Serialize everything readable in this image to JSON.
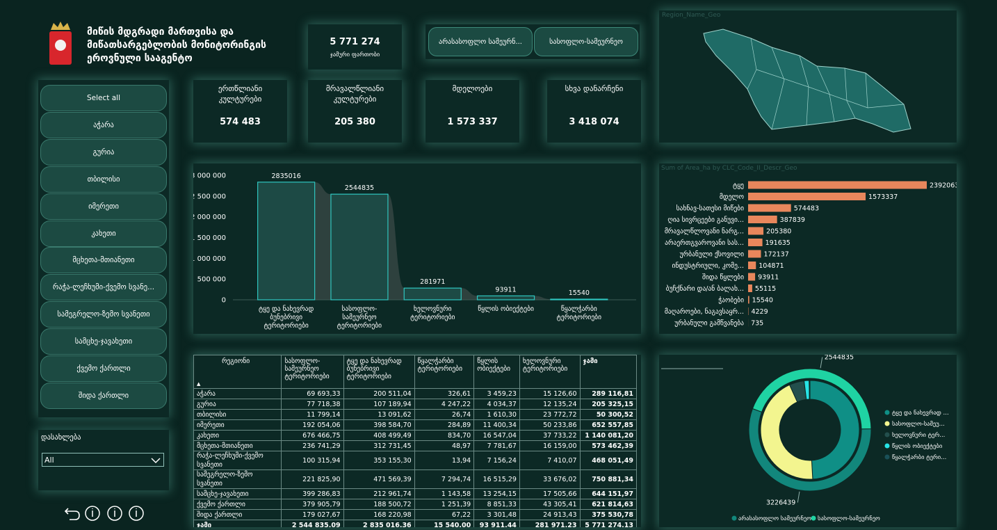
{
  "header": {
    "title_lines": [
      "მიწის მდგრადი მართვისა და",
      "მიწათსარგებლობის მონიტორინგის",
      "ეროვნული სააგენტო"
    ]
  },
  "total": {
    "value": "5 771 274",
    "label": "ჯამური ფართობი"
  },
  "buttons": [
    "არასასოფლო სამეურნ...",
    "სასოფლო-სამეურნეო"
  ],
  "kpis": [
    {
      "label": "ერთწლიანი კულტურები",
      "value": "574 483"
    },
    {
      "label": "მრავალწლიანი კულტურები",
      "value": "205 380"
    },
    {
      "label": "მდელოები",
      "value": "1 573 337"
    },
    {
      "label": "სხვა დანარჩენი",
      "value": "3 418 074"
    }
  ],
  "slicer": {
    "items": [
      "Select all",
      "აჭარა",
      "გურია",
      "თბილისი",
      "იმერეთი",
      "კახეთი",
      "მცხეთა-მთიანეთი",
      "რაჭა-ლეჩხუმი-ქვემო სვანე...",
      "სამეგრელო-ზემო სვანეთი",
      "სამცხე-ჯავახეთი",
      "ქვემო ქართლი",
      "შიდა ქართლი"
    ]
  },
  "dropdown": {
    "label": "დასახლება",
    "value": "All"
  },
  "map": {
    "title": "Region_Name_Geo"
  },
  "chart_data": [
    {
      "type": "bar",
      "categories": [
        "ტყე და ნახევრად ბუნებრივი ტერიტორიები",
        "სასოფლო-სამეურნეო ტერიტორიები",
        "ხელოვნური ტერიტორიები",
        "წყლის ობიექტები",
        "წყალჭარბი ტერიტორიები"
      ],
      "values": [
        2835016,
        2544835,
        281971,
        93911,
        15540
      ],
      "color": "#1d4a45",
      "ylim": [
        0,
        3000000
      ],
      "yticks": [
        0,
        {
          "value": 500000,
          "label": "500 000"
        },
        {
          "value": 1000000,
          "label": "1 000 000"
        },
        {
          "value": 1500000,
          "label": "1 500 000"
        },
        {
          "value": 2000000,
          "label": "2 000 000"
        },
        {
          "value": 2500000,
          "label": "2 500 000"
        },
        {
          "value": 3000000,
          "label": "3 000 000"
        }
      ],
      "grid": false
    },
    {
      "type": "hbar",
      "title": "Sum of Area_ha by CLC_Code_II_Descr_Geo",
      "categories": [
        "ტყე",
        "მდელო",
        "სახნავ-სათესი მიწები",
        "ღია სივრცეები განუვი...",
        "მრავალწლოვანი ნარგ...",
        "არაერთგვაროვანი სას...",
        "ურბანული ქსოვილი",
        "ინდუსტრიული, კომე...",
        "შიდა წყლები",
        "ბუჩქნარი და/ან ბალახ...",
        "ჭაობები",
        "მაღაროები, ნაგავსაყრ...",
        "ურბანული გამწვანება"
      ],
      "values": [
        2392063,
        1573337,
        574483,
        387839,
        205380,
        191635,
        172137,
        104871,
        93911,
        55115,
        15540,
        4229,
        735
      ],
      "color": "#e8875c",
      "xlim": [
        0,
        2392063
      ]
    },
    {
      "type": "donut",
      "categories": [
        "ტყე და ნახევრად ...",
        "სასოფლო-სამეუ...",
        "ხელოვნური ტერ...",
        "წყლის ობიექტები",
        "წყალჭარბი ტერი..."
      ],
      "values": [
        2835016,
        2544835,
        281971,
        93911,
        15540
      ],
      "colors": [
        "#0f8f86",
        "#f3f58f",
        "#234f4d",
        "#27e3e6",
        "#1a5058"
      ],
      "outer": {
        "categories": [
          "არასასოფლო სამეურნეო",
          "სასოფლო-სამეურნეო"
        ],
        "values": [
          3226439,
          2544835
        ],
        "colors": [
          "#12877c",
          "#1fd3a3"
        ]
      }
    }
  ],
  "table": {
    "columns": [
      "რეგიონი",
      "სასოფლო-სამეურნეო ტერიტორიები",
      "ტყე და ნახევრად ბუნებრივი ტერიტორიები",
      "წყალჭარბი ტერიტორიები",
      "წყლის ობიექტები",
      "ხელოვნური ტერიტორიები",
      "ჯამი"
    ],
    "rows": [
      [
        "აჭარა",
        "69 693,33",
        "200 511,04",
        "326,61",
        "3 459,23",
        "15 126,60",
        "289 116,81"
      ],
      [
        "გურია",
        "77 718,38",
        "107 189,94",
        "4 247,22",
        "4 034,37",
        "12 135,24",
        "205 325,15"
      ],
      [
        "თბილისი",
        "11 799,14",
        "13 091,62",
        "26,74",
        "1 610,30",
        "23 772,72",
        "50 300,52"
      ],
      [
        "იმერეთი",
        "192 054,06",
        "398 584,70",
        "284,89",
        "11 400,34",
        "50 233,86",
        "652 557,85"
      ],
      [
        "კახეთი",
        "676 466,75",
        "408 499,49",
        "834,70",
        "16 547,04",
        "37 733,22",
        "1 140 081,20"
      ],
      [
        "მცხეთა-მთიანეთი",
        "236 741,29",
        "312 731,45",
        "48,97",
        "7 781,67",
        "16 159,00",
        "573 462,39"
      ],
      [
        "რაჭა-ლეჩხუმი-ქვემო სვანეთი",
        "100 315,94",
        "353 155,30",
        "13,94",
        "7 156,24",
        "7 410,07",
        "468 051,49"
      ],
      [
        "სამეგრელო-ზემო სვანეთი",
        "221 825,90",
        "471 569,39",
        "7 294,74",
        "16 515,29",
        "33 676,02",
        "750 881,34"
      ],
      [
        "სამცხე-ჯავახეთი",
        "399 286,83",
        "212 961,74",
        "1 143,58",
        "13 254,15",
        "17 505,66",
        "644 151,97"
      ],
      [
        "ქვემო ქართლი",
        "379 905,79",
        "188 500,72",
        "1 251,39",
        "8 851,33",
        "43 305,41",
        "621 814,63"
      ],
      [
        "შიდა ქართლი",
        "179 027,67",
        "168 220,98",
        "67,22",
        "3 301,48",
        "24 913,43",
        "375 530,78"
      ]
    ],
    "total": [
      "ჯამი",
      "2 544 835,09",
      "2 835 016,36",
      "15 540,00",
      "93 911,44",
      "281 971,23",
      "5 771 274,13"
    ]
  }
}
